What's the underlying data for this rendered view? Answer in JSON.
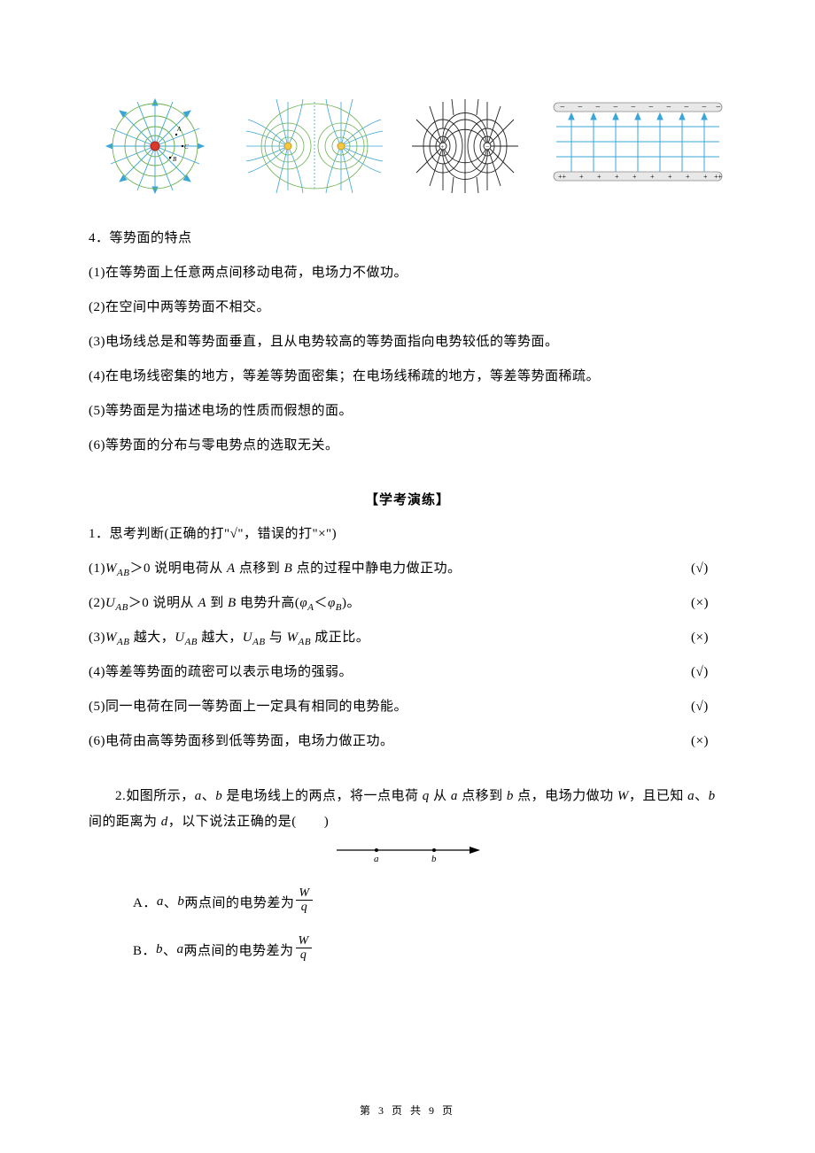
{
  "colors": {
    "text": "#000000",
    "background": "#ffffff",
    "fieldline_blue": "#3aa5d8",
    "equipotential_green": "#6ab04c",
    "arrow_dark": "#222222",
    "plate_gray": "#d0d0d0",
    "charge_red": "#d93a2b",
    "charge_yellow": "#f5c842"
  },
  "section4_heading": "4．等势面的特点",
  "section4_items": [
    "(1)在等势面上任意两点间移动电荷，电场力不做功。",
    "(2)在空间中两等势面不相交。",
    "(3)电场线总是和等势面垂直，且从电势较高的等势面指向电势较低的等势面。",
    "(4)在电场线密集的地方，等差等势面密集；在电场线稀疏的地方，等差等势面稀疏。",
    "(5)等势面是为描述电场的性质而假想的面。",
    "(6)等势面的分布与零电势点的选取无关。"
  ],
  "practice_title": "【学考演练】",
  "q1_heading": "1．思考判断(正确的打\"√\"，错误的打\"×\")",
  "q1_items": [
    {
      "pre": "(1)",
      "body_html": "<span class='italic'>W<span class='sub'>AB</span></span>＞0 说明电荷从 <span class='italic'>A</span> 点移到 <span class='italic'>B</span> 点的过程中静电力做正功。",
      "mark": "(√)"
    },
    {
      "pre": "(2)",
      "body_html": "<span class='italic'>U<span class='sub'>AB</span></span>＞0 说明从 <span class='italic'>A</span> 到 <span class='italic'>B</span> 电势升高(<span class='italic'>φ<span class='sub'>A</span></span>＜<span class='italic'>φ<span class='sub'>B</span></span>)。",
      "mark": "(×)"
    },
    {
      "pre": "(3)",
      "body_html": "<span class='italic'>W<span class='sub'>AB</span></span> 越大，<span class='italic'>U<span class='sub'>AB</span></span> 越大，<span class='italic'>U<span class='sub'>AB</span></span> 与 <span class='italic'>W<span class='sub'>AB</span></span> 成正比。",
      "mark": "(×)"
    },
    {
      "pre": "(4)",
      "body_html": "等差等势面的疏密可以表示电场的强弱。",
      "mark": "(√)"
    },
    {
      "pre": "(5)",
      "body_html": "同一电荷在同一等势面上一定具有相同的电势能。",
      "mark": "(√)"
    },
    {
      "pre": "(6)",
      "body_html": "电荷由高等势面移到低等势面，电场力做正功。",
      "mark": "(×)"
    }
  ],
  "q2_text_html": "2.如图所示，<span class='italic'>a</span>、<span class='italic'>b</span> 是电场线上的两点，将一点电荷 <span class='italic'>q</span> 从 <span class='italic'>a</span> 点移到 <span class='italic'>b</span> 点，电场力做功 <span class='italic'>W</span>，且已知 <span class='italic'>a</span>、<span class='italic'>b</span> 间的距离为 <span class='italic'>d</span>，以下说法正确的是(　　)",
  "q2_fig_labels": {
    "a": "a",
    "b": "b"
  },
  "q2_options": {
    "A": {
      "label": "A．",
      "pre": "a",
      "mid": "、",
      "post": "b",
      "tail": " 两点间的电势差为",
      "frac_num": "W",
      "frac_den": "q"
    },
    "B": {
      "label": "B．",
      "pre": "b",
      "mid": "、",
      "post": "a",
      "tail": " 两点间的电势差为",
      "frac_num": "W",
      "frac_den": "q"
    }
  },
  "footer": "第 3 页 共 9 页"
}
